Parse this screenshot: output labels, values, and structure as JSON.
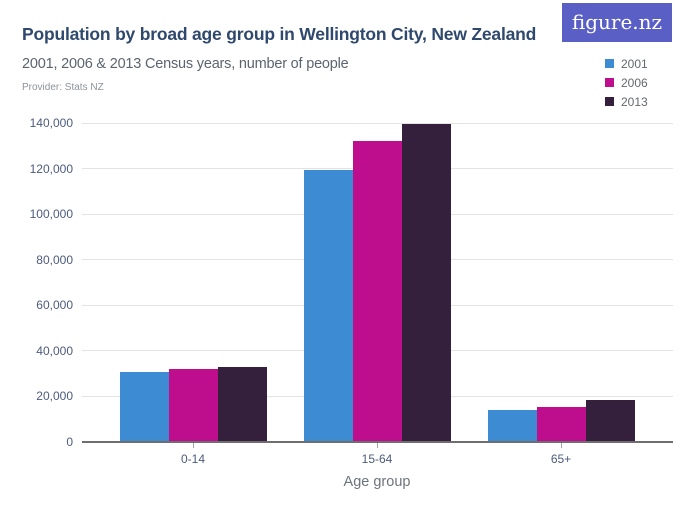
{
  "header": {
    "title": "Population by broad age group in Wellington City, New Zealand",
    "subtitle": "2001, 2006 & 2013 Census years, number of people",
    "provider": "Provider: Stats NZ",
    "logo_text": "figure.nz",
    "logo_bg_color": "#5a5fc5"
  },
  "chart_data": {
    "type": "bar",
    "title": "Population by broad age group in Wellington City, New Zealand",
    "subtitle": "2001, 2006 & 2013 Census years, number of people",
    "categories": [
      "0-14",
      "15-64",
      "65+"
    ],
    "series": [
      {
        "name": "2001",
        "color": "#3d8bd3",
        "values": [
          30700,
          119200,
          13900
        ]
      },
      {
        "name": "2006",
        "color": "#be0d8d",
        "values": [
          31800,
          132100,
          15100
        ]
      },
      {
        "name": "2013",
        "color": "#34203c",
        "values": [
          32900,
          139600,
          18100
        ]
      }
    ],
    "xlabel": "Age group",
    "ylabel": "",
    "ylim": [
      0,
      140000
    ],
    "ytick_values": [
      0,
      20000,
      40000,
      60000,
      80000,
      100000,
      120000,
      140000
    ],
    "ytick_labels": [
      "0",
      "20,000",
      "40,000",
      "60,000",
      "80,000",
      "100,000",
      "120,000",
      "140,000"
    ],
    "grid": true,
    "legend_position": "top-right"
  }
}
